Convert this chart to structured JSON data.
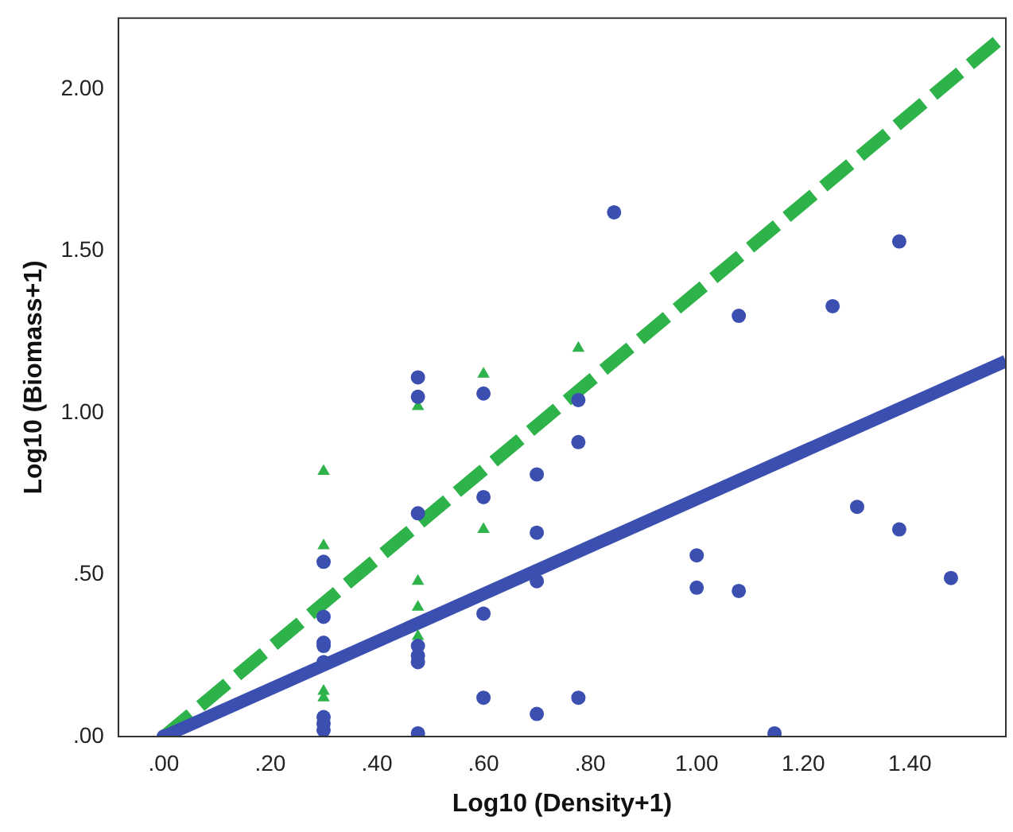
{
  "chart_data": {
    "type": "scatter",
    "xlabel": "Log10 (Density+1)",
    "ylabel": "Log10 (Biomass+1)",
    "xlim": [
      -0.085,
      1.58
    ],
    "ylim": [
      0,
      2.22
    ],
    "xticks": [
      {
        "value": 0,
        "label": ".00"
      },
      {
        "value": 0.2,
        "label": ".20"
      },
      {
        "value": 0.4,
        "label": ".40"
      },
      {
        "value": 0.6,
        "label": ".60"
      },
      {
        "value": 0.8,
        "label": ".80"
      },
      {
        "value": 1.0,
        "label": "1.00"
      },
      {
        "value": 1.2,
        "label": "1.20"
      },
      {
        "value": 1.4,
        "label": "1.40"
      }
    ],
    "yticks": [
      {
        "value": 0,
        "label": ".00"
      },
      {
        "value": 0.5,
        "label": ".50"
      },
      {
        "value": 1.0,
        "label": "1.00"
      },
      {
        "value": 1.5,
        "label": "1.50"
      },
      {
        "value": 2.0,
        "label": "2.00"
      }
    ],
    "grid": false,
    "legend": false,
    "series": [
      {
        "type": "scatter",
        "color": "#3b4fb0",
        "marker": "circle",
        "x": [
          0,
          0.3,
          0.3,
          0.3,
          0.3,
          0.3,
          0.3,
          0.3,
          0.3,
          0.477,
          0.477,
          0.477,
          0.477,
          0.477,
          0.477,
          0.477,
          0.6,
          0.6,
          0.6,
          0.6,
          0.7,
          0.7,
          0.7,
          0.7,
          0.778,
          0.778,
          0.778,
          0.845,
          1.0,
          1.0,
          1.079,
          1.079,
          1.146,
          1.255,
          1.301,
          1.38,
          1.38,
          1.477
        ],
        "values": [
          0,
          0.54,
          0.37,
          0.29,
          0.28,
          0.23,
          0.06,
          0.04,
          0.02,
          1.11,
          1.05,
          0.69,
          0.28,
          0.25,
          0.23,
          0.01,
          1.06,
          0.74,
          0.38,
          0.12,
          0.81,
          0.63,
          0.48,
          0.07,
          1.04,
          0.91,
          0.12,
          1.62,
          0.56,
          0.46,
          1.3,
          0.45,
          0.01,
          1.33,
          0.71,
          1.53,
          0.64,
          0.49
        ]
      },
      {
        "type": "scatter",
        "color": "#2db34a",
        "marker": "triangle",
        "x": [
          0.3,
          0.3,
          0.3,
          0.3,
          0.477,
          0.477,
          0.477,
          0.477,
          0.6,
          0.6,
          0.778
        ],
        "values": [
          0.82,
          0.59,
          0.14,
          0.12,
          1.02,
          0.48,
          0.4,
          0.31,
          1.12,
          0.64,
          1.2
        ]
      },
      {
        "type": "line",
        "color": "#3b4fb0",
        "line_style": "solid",
        "x": [
          0,
          1.58
        ],
        "values": [
          0,
          1.16
        ]
      },
      {
        "type": "line",
        "color": "#2db34a",
        "line_style": "dashed",
        "x": [
          0,
          1.58
        ],
        "values": [
          0,
          2.17
        ]
      }
    ]
  }
}
